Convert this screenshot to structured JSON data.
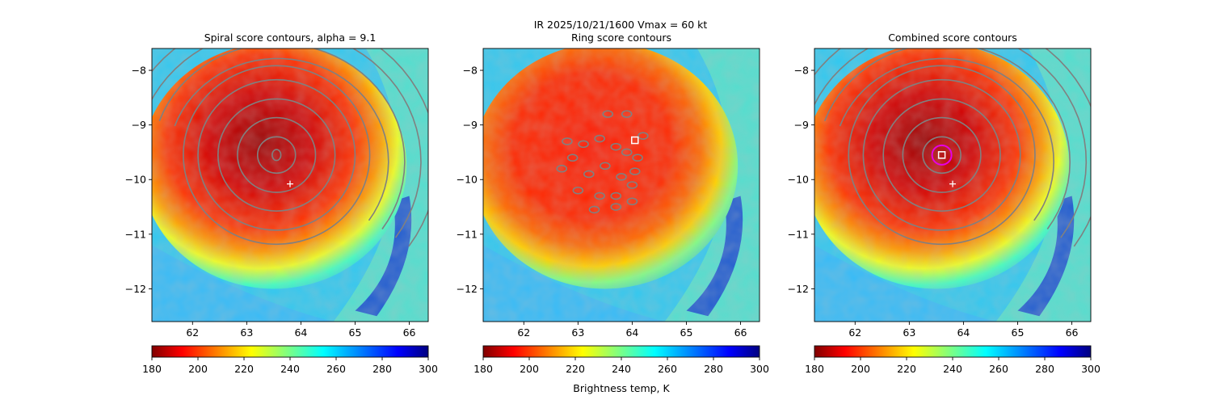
{
  "figure": {
    "suptitle_line1": "IR  2025/10/21/1600    Vmax = 60 kt"
  },
  "chart_data": [
    {
      "type": "heatmap",
      "title": "Spiral score contours, alpha =  9.1",
      "xlabel": "",
      "ylabel": "",
      "xlim": [
        61.25,
        66.35
      ],
      "ylim": [
        -12.6,
        -7.6
      ],
      "xticks": [
        62,
        63,
        64,
        65,
        66
      ],
      "yticks": [
        -8,
        -9,
        -10,
        -11,
        -12
      ],
      "background": "IR brightness temperature field (jet colormap)",
      "contours": "spiral score contours (gray)",
      "plus_marker": {
        "x": 63.8,
        "y": -10.08,
        "color": "#ffffff"
      },
      "center_marker": {
        "x": 63.55,
        "y": -9.55,
        "shape": "small ring"
      },
      "colorbar": {
        "min": 180,
        "max": 300,
        "ticks": [
          180,
          200,
          220,
          240,
          260,
          280,
          300
        ],
        "label": ""
      }
    },
    {
      "type": "heatmap",
      "title": "Ring score contours",
      "xlabel": "",
      "ylabel": "",
      "xlim": [
        61.25,
        66.35
      ],
      "ylim": [
        -12.6,
        -7.6
      ],
      "xticks": [
        62,
        63,
        64,
        65,
        66
      ],
      "yticks": [
        -8,
        -9,
        -10,
        -11,
        -12
      ],
      "background": "IR brightness temperature field (jet colormap)",
      "contours": "ring score contours (gray, scattered)",
      "square_marker": {
        "x": 64.05,
        "y": -9.28,
        "color": "#ffffff"
      },
      "colorbar": {
        "min": 180,
        "max": 300,
        "ticks": [
          180,
          200,
          220,
          240,
          260,
          280,
          300
        ],
        "label": "Brightness temp, K"
      }
    },
    {
      "type": "heatmap",
      "title": "Combined score contours",
      "xlabel": "",
      "ylabel": "",
      "xlim": [
        61.25,
        66.35
      ],
      "ylim": [
        -12.6,
        -7.6
      ],
      "xticks": [
        62,
        63,
        64,
        65,
        66
      ],
      "yticks": [
        -8,
        -9,
        -10,
        -11,
        -12
      ],
      "background": "IR brightness temperature field (jet colormap)",
      "contours": "combined score contours (gray)",
      "plus_marker": {
        "x": 63.8,
        "y": -10.08,
        "color": "#ffffff"
      },
      "square_marker": {
        "x": 63.6,
        "y": -9.55,
        "color": "#ffffff"
      },
      "circle_marker": {
        "x": 63.6,
        "y": -9.55,
        "color": "#e600e6"
      },
      "colorbar": {
        "min": 180,
        "max": 300,
        "ticks": [
          180,
          200,
          220,
          240,
          260,
          280,
          300
        ],
        "label": ""
      }
    }
  ]
}
